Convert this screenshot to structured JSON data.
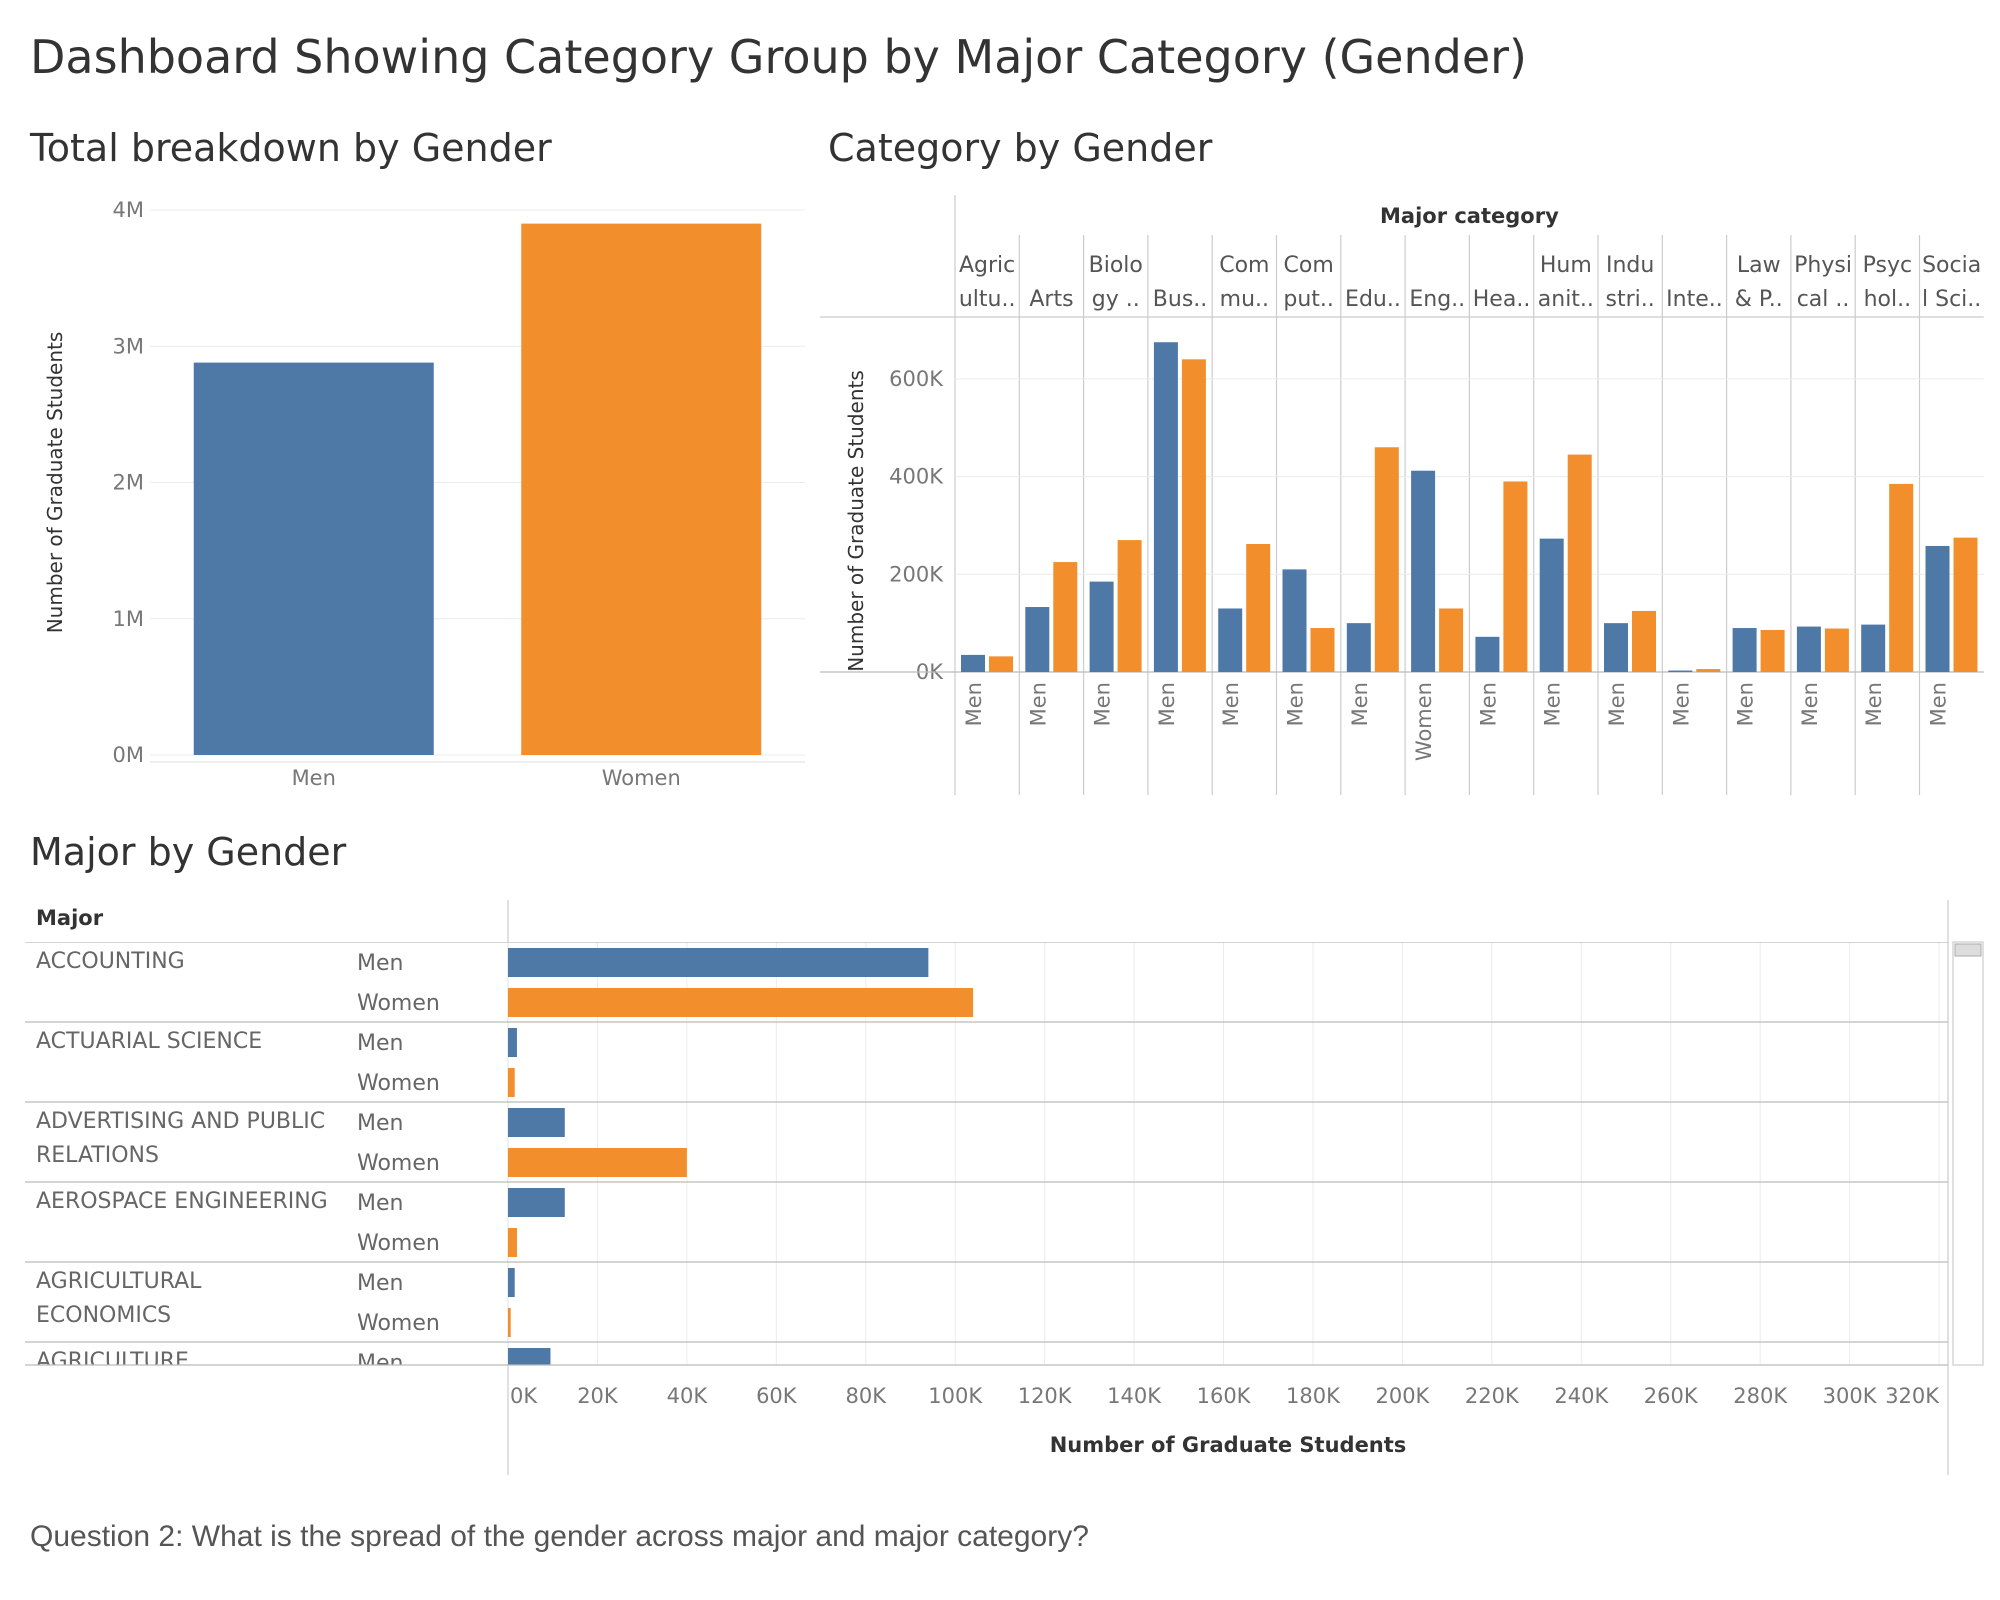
{
  "dashboard": {
    "title": "Dashboard Showing Category Group by Major Category (Gender)",
    "question": "Question 2: What is the spread of the gender across major and major category?"
  },
  "colors": {
    "men": "#4e79a7",
    "women": "#f28e2b"
  },
  "chart_data": [
    {
      "type": "bar",
      "title": "Total breakdown by Gender",
      "xlabel": "",
      "ylabel": "Number of Graduate Students",
      "categories": [
        "Men",
        "Women"
      ],
      "values": [
        2880000,
        3900000
      ],
      "ylim": [
        0,
        4000000
      ],
      "yticks": [
        0,
        1000000,
        2000000,
        3000000,
        4000000
      ],
      "ytick_labels": [
        "0M",
        "1M",
        "2M",
        "3M",
        "4M"
      ],
      "grid": true
    },
    {
      "type": "bar",
      "title": "Category by Gender",
      "header_title": "Major category",
      "ylabel": "Number of Graduate Students",
      "ylim": [
        0,
        700000
      ],
      "yticks": [
        0,
        200000,
        400000,
        600000
      ],
      "ytick_labels": [
        "0K",
        "200K",
        "400K",
        "600K"
      ],
      "grid": true,
      "categories": [
        {
          "label": [
            "Agric",
            "ultu.."
          ],
          "men": 35000,
          "women": 32000,
          "xlabel": "Men"
        },
        {
          "label": [
            "",
            "Arts"
          ],
          "men": 133000,
          "women": 225000,
          "xlabel": "Men"
        },
        {
          "label": [
            "Biolo",
            "gy .."
          ],
          "men": 185000,
          "women": 270000,
          "xlabel": "Men"
        },
        {
          "label": [
            "",
            "Bus.."
          ],
          "men": 675000,
          "women": 640000,
          "xlabel": "Men"
        },
        {
          "label": [
            "Com",
            "mu.."
          ],
          "men": 130000,
          "women": 262000,
          "xlabel": "Men"
        },
        {
          "label": [
            "Com",
            "put.."
          ],
          "men": 210000,
          "women": 90000,
          "xlabel": "Men"
        },
        {
          "label": [
            "",
            "Edu.."
          ],
          "men": 100000,
          "women": 460000,
          "xlabel": "Men"
        },
        {
          "label": [
            "",
            "Eng.."
          ],
          "men": 412000,
          "women": 130000,
          "xlabel": "Women"
        },
        {
          "label": [
            "",
            "Hea.."
          ],
          "men": 72000,
          "women": 390000,
          "xlabel": "Men"
        },
        {
          "label": [
            "Hum",
            "anit.."
          ],
          "men": 273000,
          "women": 445000,
          "xlabel": "Men"
        },
        {
          "label": [
            "Indu",
            "stri.."
          ],
          "men": 100000,
          "women": 125000,
          "xlabel": "Men"
        },
        {
          "label": [
            "",
            "Inte.."
          ],
          "men": 3000,
          "women": 6000,
          "xlabel": "Men"
        },
        {
          "label": [
            "Law",
            "& P.."
          ],
          "men": 90000,
          "women": 86000,
          "xlabel": "Men"
        },
        {
          "label": [
            "Physi",
            "cal .."
          ],
          "men": 93000,
          "women": 89000,
          "xlabel": "Men"
        },
        {
          "label": [
            "Psyc",
            "hol.."
          ],
          "men": 97000,
          "women": 385000,
          "xlabel": "Men"
        },
        {
          "label": [
            "Socia",
            "l Sci.."
          ],
          "men": 258000,
          "women": 275000,
          "xlabel": "Men"
        }
      ]
    },
    {
      "type": "bar",
      "orientation": "horizontal",
      "title": "Major by Gender",
      "row_header": "Major",
      "xlabel": "Number of Graduate Students",
      "xlim": [
        0,
        322000
      ],
      "xticks": [
        0,
        20000,
        40000,
        60000,
        80000,
        100000,
        120000,
        140000,
        160000,
        180000,
        200000,
        220000,
        240000,
        260000,
        280000,
        300000,
        320000
      ],
      "xtick_labels": [
        "0K",
        "20K",
        "40K",
        "60K",
        "80K",
        "100K",
        "120K",
        "140K",
        "160K",
        "180K",
        "200K",
        "220K",
        "240K",
        "260K",
        "280K",
        "300K",
        "320K"
      ],
      "grid": true,
      "rows": [
        {
          "major": [
            "ACCOUNTING"
          ],
          "men": 94000,
          "women": 104000
        },
        {
          "major": [
            "ACTUARIAL SCIENCE"
          ],
          "men": 2000,
          "women": 1500
        },
        {
          "major": [
            "ADVERTISING AND PUBLIC",
            "RELATIONS"
          ],
          "men": 12700,
          "women": 40000
        },
        {
          "major": [
            "AEROSPACE ENGINEERING"
          ],
          "men": 12700,
          "women": 2000
        },
        {
          "major": [
            "AGRICULTURAL",
            "ECONOMICS"
          ],
          "men": 1500,
          "women": 600
        },
        {
          "major": [
            "AGRICULTURE"
          ],
          "men": 9500,
          "women": null
        }
      ],
      "gender_labels": [
        "Men",
        "Women"
      ]
    }
  ]
}
